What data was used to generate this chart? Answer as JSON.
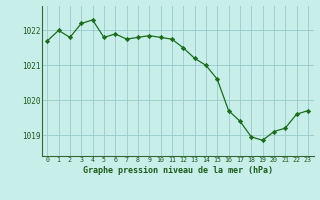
{
  "x": [
    0,
    1,
    2,
    3,
    4,
    5,
    6,
    7,
    8,
    9,
    10,
    11,
    12,
    13,
    14,
    15,
    16,
    17,
    18,
    19,
    20,
    21,
    22,
    23
  ],
  "y": [
    1021.7,
    1022.0,
    1021.8,
    1022.2,
    1022.3,
    1021.8,
    1021.9,
    1021.75,
    1021.8,
    1021.85,
    1021.8,
    1021.75,
    1021.5,
    1021.2,
    1021.0,
    1020.6,
    1019.7,
    1019.4,
    1018.95,
    1018.85,
    1019.1,
    1019.2,
    1019.6,
    1019.7
  ],
  "line_color": "#1a6e1a",
  "marker_color": "#1a6e1a",
  "bg_color": "#c8eeea",
  "grid_color": "#99cccc",
  "axis_label_color": "#1a5c1a",
  "title": "Graphe pression niveau de la mer (hPa)",
  "title_color": "#1a5c1a",
  "yticks": [
    1019,
    1020,
    1021,
    1022
  ],
  "xticks": [
    0,
    1,
    2,
    3,
    4,
    5,
    6,
    7,
    8,
    9,
    10,
    11,
    12,
    13,
    14,
    15,
    16,
    17,
    18,
    19,
    20,
    21,
    22,
    23
  ],
  "ylim": [
    1018.4,
    1022.7
  ],
  "xlim": [
    -0.5,
    23.5
  ],
  "spine_color": "#336633",
  "bottom_bar_color": "#225522"
}
